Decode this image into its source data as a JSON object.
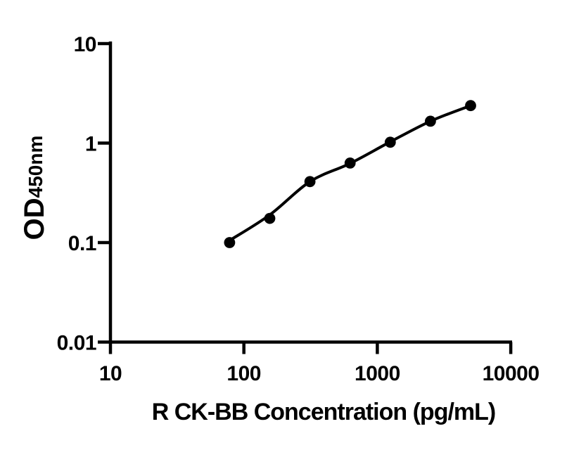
{
  "figure": {
    "background": "#ffffff",
    "axis_color": "#000000",
    "curve_color": "#000000",
    "marker_color": "#000000"
  },
  "y_axis": {
    "title_main": "OD",
    "title_sub": "450nm",
    "scale": "log",
    "range": [
      0.01,
      10
    ],
    "tick_values": [
      10,
      1,
      0.1,
      0.01
    ],
    "tick_labels": [
      "10",
      "1",
      "0.1",
      "0.01"
    ]
  },
  "x_axis": {
    "title": "R CK-BB Concentration (pg/mL)",
    "scale": "log",
    "range": [
      10,
      10000
    ],
    "tick_values": [
      10,
      100,
      1000,
      10000
    ],
    "tick_labels": [
      "10",
      "100",
      "1000",
      "10000"
    ]
  },
  "chart_data": {
    "type": "scatter",
    "title": "",
    "xlabel": "R CK-BB Concentration (pg/mL)",
    "ylabel": "OD450nm",
    "x_scale": "log",
    "y_scale": "log",
    "xlim": [
      10,
      10000
    ],
    "ylim": [
      0.01,
      10
    ],
    "grid": false,
    "legend_position": "none",
    "marker": "filled-circle",
    "line": "4PL-fit-curve",
    "x": [
      78.125,
      156.25,
      312.5,
      625,
      1250,
      2500,
      5000
    ],
    "y": [
      0.1,
      0.175,
      0.41,
      0.63,
      1.02,
      1.66,
      2.38
    ],
    "curve_y": [
      0.105,
      0.19,
      0.41,
      0.625,
      1.03,
      1.66,
      2.38
    ]
  }
}
